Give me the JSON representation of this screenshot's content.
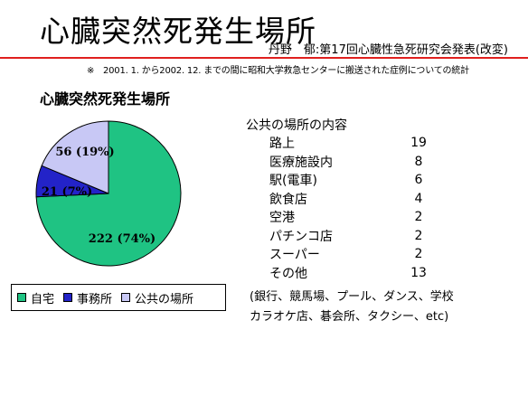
{
  "slide": {
    "title": "心臓突然死発生場所",
    "author": "丹野　郁:第17回心臓性急死研究会発表(改変)",
    "note": "※　2001. 1. から2002. 12. までの間に昭和大学救急センターに搬送された症例についての統計",
    "chart_heading": "心臓突然死発生場所"
  },
  "chart_data": {
    "type": "pie",
    "slices": [
      {
        "name": "自宅",
        "value": 222,
        "label": "222 (74%)",
        "color": "#1fc383"
      },
      {
        "name": "事務所",
        "value": 21,
        "label": "21 (7%)",
        "color": "#2323c8"
      },
      {
        "name": "公共の場所",
        "value": 56,
        "label": "56 (19%)",
        "color": "#c8c8f5"
      }
    ],
    "legend_placement": "bottom"
  },
  "public_places": {
    "title": "公共の場所の内容",
    "items": [
      {
        "name": "路上",
        "count": "19"
      },
      {
        "name": "医療施設内",
        "count": "8"
      },
      {
        "name": "駅(電車)",
        "count": "6"
      },
      {
        "name": "飲食店",
        "count": "4"
      },
      {
        "name": "空港",
        "count": "2"
      },
      {
        "name": "パチンコ店",
        "count": "2"
      },
      {
        "name": "スーパー",
        "count": "2"
      },
      {
        "name": "その他",
        "count": "13"
      }
    ],
    "examples_line1": "(銀行、競馬場、プール、ダンス、学校",
    "examples_line2": "カラオケ店、碁会所、タクシー、etc)"
  }
}
